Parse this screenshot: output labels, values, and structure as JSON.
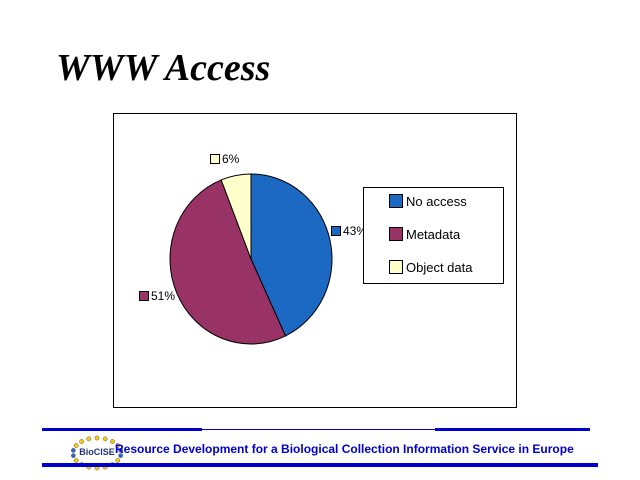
{
  "slide": {
    "title": "WWW Access"
  },
  "chart_data": {
    "type": "pie",
    "title": "WWW Access",
    "categories": [
      "No access",
      "Metadata",
      "Object data"
    ],
    "values": [
      43,
      51,
      6
    ],
    "data_labels": [
      "43%",
      "51%",
      "6%"
    ],
    "colors": [
      "#1C69C4",
      "#993366",
      "#FFFFCC"
    ],
    "slice_outline_color": "#000000",
    "legend": {
      "position": "right",
      "entries": [
        "No access",
        "Metadata",
        "Object data"
      ]
    },
    "start_angle": "12 o'clock",
    "direction": "clockwise"
  },
  "footer": {
    "logo_text": "BioCISE",
    "text": "Resource Development for a Biological Collection Information Service in Europe",
    "accent_color": "#0000CC",
    "logo_dot_colors": [
      "#FFCC00",
      "#3366CC"
    ]
  }
}
